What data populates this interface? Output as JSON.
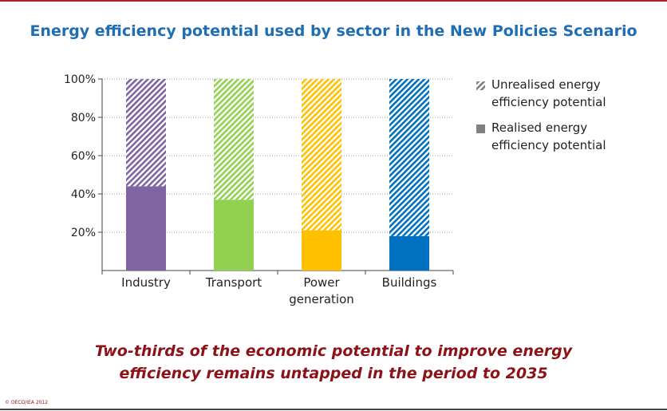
{
  "chart_data": {
    "type": "bar",
    "stacked": true,
    "title": "Energy efficiency potential used by sector in the New Policies Scenario",
    "categories": [
      "Industry",
      "Transport",
      "Power generation",
      "Buildings"
    ],
    "category_colors": [
      "#8064a2",
      "#92d050",
      "#ffc000",
      "#0070c0"
    ],
    "series": [
      {
        "name": "Realised energy efficiency potential",
        "color": "#808080",
        "values": [
          44,
          37,
          21,
          18
        ]
      },
      {
        "name": "Unrealised energy efficiency potential",
        "color": "#808080",
        "hatched": true,
        "values": [
          56,
          63,
          79,
          82
        ]
      }
    ],
    "ylim": [
      0,
      100
    ],
    "yticks": [
      {
        "value": 20,
        "label": "20%"
      },
      {
        "value": 40,
        "label": "40%"
      },
      {
        "value": 60,
        "label": "60%"
      },
      {
        "value": 80,
        "label": "80%"
      },
      {
        "value": 100,
        "label": "100%"
      }
    ],
    "grid": true,
    "caption": "Two-thirds of the economic potential to improve energy efficiency remains untapped in the period to 2035",
    "source": "© OECD/IEA 2012"
  }
}
